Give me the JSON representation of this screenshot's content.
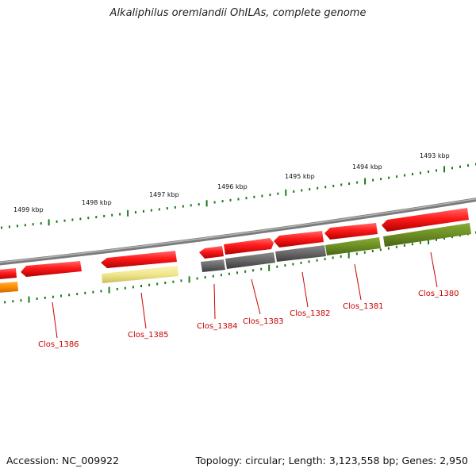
{
  "title": "Alkaliphilus oremlandii OhILAs, complete genome",
  "footer": {
    "accession": "Accession: NC_009922",
    "summary": "Topology: circular; Length: 3,123,558 bp; Genes: 2,950"
  },
  "scale_labels": [
    "1499 kbp",
    "1498 kbp",
    "1497 kbp",
    "1496 kbp",
    "1495 kbp",
    "1494 kbp",
    "1493 kbp"
  ],
  "genes": [
    {
      "name": "Clos_1386",
      "strand": "-",
      "color": "#ff1a1a"
    },
    {
      "name": "Clos_1385",
      "strand": "-",
      "color": "#ff1a1a",
      "cog_color": "#f0e68c"
    },
    {
      "name": "Clos_1384",
      "strand": "-",
      "color": "#ff1a1a",
      "cog_color": "#696969"
    },
    {
      "name": "Clos_1383",
      "strand": "+",
      "color": "#ff1a1a",
      "cog_color": "#696969"
    },
    {
      "name": "Clos_1382",
      "strand": "-",
      "color": "#ff1a1a",
      "cog_color": "#696969"
    },
    {
      "name": "Clos_1381",
      "strand": "-",
      "color": "#ff1a1a",
      "cog_color": "#6b8e23"
    },
    {
      "name": "Clos_1380",
      "strand": "-",
      "color": "#ff1a1a",
      "cog_color": "#6b8e23"
    }
  ],
  "colors": {
    "backbone": "#8c8c8c",
    "tick": "#1a7a1a",
    "label": "#cc0000",
    "partial_cog": "#ff8c00"
  }
}
